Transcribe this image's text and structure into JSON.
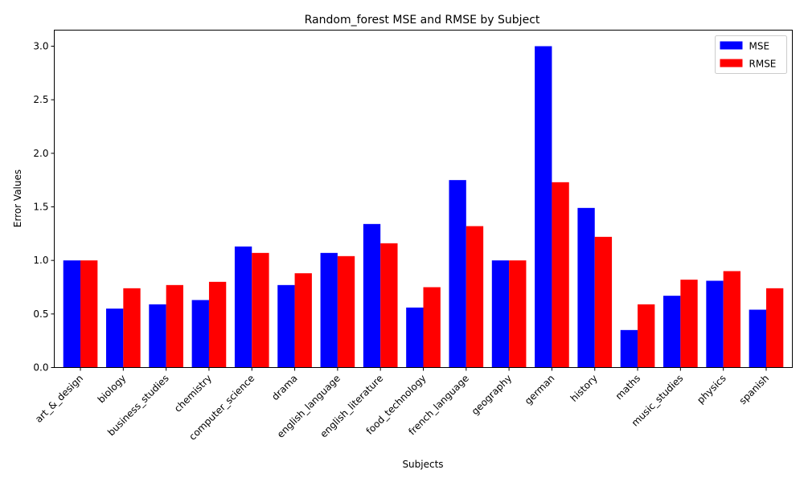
{
  "chart_data": {
    "type": "bar",
    "title": "Random_forest MSE and RMSE by Subject",
    "xlabel": "Subjects",
    "ylabel": "Error Values",
    "ylim": [
      0,
      3.15
    ],
    "yticks": [
      "0.0",
      "0.5",
      "1.0",
      "1.5",
      "2.0",
      "2.5",
      "3.0"
    ],
    "grid": false,
    "legend_position": "top-right",
    "categories": [
      "art_&_design",
      "biology",
      "business_studies",
      "chemistry",
      "computer_science",
      "drama",
      "english_language",
      "english_literature",
      "food_technology",
      "french_language",
      "geography",
      "german",
      "history",
      "maths",
      "music_studies",
      "physics",
      "spanish"
    ],
    "series": [
      {
        "name": "MSE",
        "color": "#0000ff",
        "values": [
          1.0,
          0.55,
          0.59,
          0.63,
          1.13,
          0.77,
          1.07,
          1.34,
          0.56,
          1.75,
          1.0,
          3.0,
          1.49,
          0.35,
          0.67,
          0.81,
          0.54
        ]
      },
      {
        "name": "RMSE",
        "color": "#ff0000",
        "values": [
          1.0,
          0.74,
          0.77,
          0.8,
          1.07,
          0.88,
          1.04,
          1.16,
          0.75,
          1.32,
          1.0,
          1.73,
          1.22,
          0.59,
          0.82,
          0.9,
          0.74
        ]
      }
    ]
  }
}
